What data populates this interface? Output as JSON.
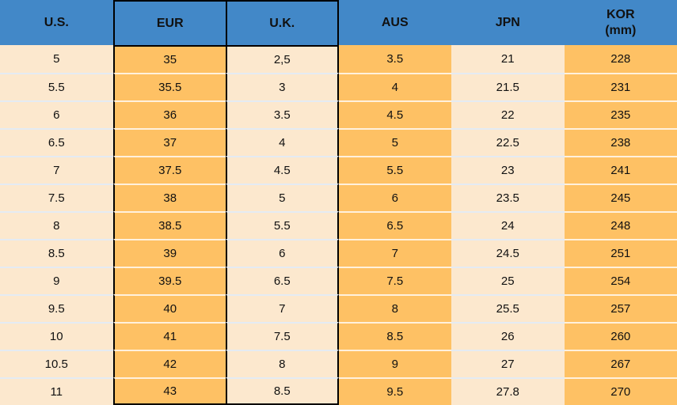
{
  "header": {
    "us": "U.S.",
    "eur": "EUR",
    "uk": "U.K.",
    "aus": "AUS",
    "jpn": "JPN",
    "kor_line1": "KOR",
    "kor_line2": "(mm)"
  },
  "colors": {
    "header_blue": "#4288C8",
    "orange": "#FEC164",
    "cream": "#FCE8CE",
    "grid_black": "#000000"
  },
  "chart_data": {
    "type": "table",
    "columns": [
      "U.S.",
      "EUR",
      "U.K.",
      "AUS",
      "JPN",
      "KOR (mm)"
    ],
    "rows": [
      [
        "5",
        "35",
        "2,5",
        "3.5",
        "21",
        "228"
      ],
      [
        "5.5",
        "35.5",
        "3",
        "4",
        "21.5",
        "231"
      ],
      [
        "6",
        "36",
        "3.5",
        "4.5",
        "22",
        "235"
      ],
      [
        "6.5",
        "37",
        "4",
        "5",
        "22.5",
        "238"
      ],
      [
        "7",
        "37.5",
        "4.5",
        "5.5",
        "23",
        "241"
      ],
      [
        "7.5",
        "38",
        "5",
        "6",
        "23.5",
        "245"
      ],
      [
        "8",
        "38.5",
        "5.5",
        "6.5",
        "24",
        "248"
      ],
      [
        "8.5",
        "39",
        "6",
        "7",
        "24.5",
        "251"
      ],
      [
        "9",
        "39.5",
        "6.5",
        "7.5",
        "25",
        "254"
      ],
      [
        "9.5",
        "40",
        "7",
        "8",
        "25.5",
        "257"
      ],
      [
        "10",
        "41",
        "7.5",
        "8.5",
        "26",
        "260"
      ],
      [
        "10.5",
        "42",
        "8",
        "9",
        "27",
        "267"
      ],
      [
        "11",
        "43",
        "8.5",
        "9.5",
        "27.8",
        "270"
      ]
    ]
  }
}
